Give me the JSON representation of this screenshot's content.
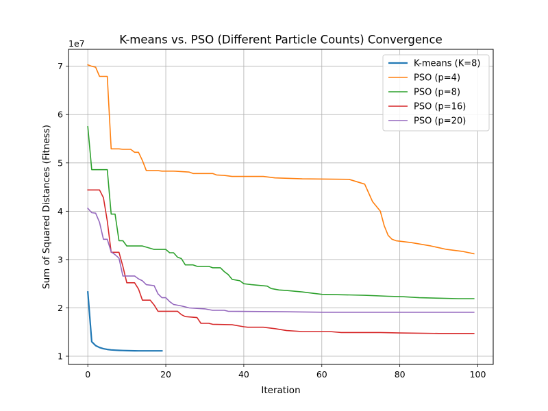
{
  "chart_data": {
    "type": "line",
    "title": "K-means vs. PSO (Different Particle Counts) Convergence",
    "xlabel": "Iteration",
    "ylabel": "Sum of Squared Distances (Fitness)",
    "y_exponent_label": "1e7",
    "xlim": [
      -4.95,
      103.95
    ],
    "ylim": [
      8300000,
      73500000
    ],
    "x_ticks": [
      0,
      20,
      40,
      60,
      80,
      100
    ],
    "y_ticks": [
      10000000,
      20000000,
      30000000,
      40000000,
      50000000,
      60000000,
      70000000
    ],
    "y_tick_labels": [
      "1",
      "2",
      "3",
      "4",
      "5",
      "6",
      "7"
    ],
    "grid": true,
    "legend_position": "top-right",
    "series": [
      {
        "name": "K-means (K=8)",
        "color": "#1f77b4",
        "width": 2.2,
        "points": [
          [
            0,
            23300000
          ],
          [
            1,
            13000000
          ],
          [
            2,
            12200000
          ],
          [
            3,
            11800000
          ],
          [
            4,
            11550000
          ],
          [
            5,
            11400000
          ],
          [
            6,
            11300000
          ],
          [
            7,
            11250000
          ],
          [
            8,
            11200000
          ],
          [
            9,
            11180000
          ],
          [
            10,
            11150000
          ],
          [
            11,
            11130000
          ],
          [
            12,
            11120000
          ],
          [
            13,
            11110000
          ],
          [
            14,
            11100000
          ],
          [
            15,
            11100000
          ],
          [
            16,
            11100000
          ],
          [
            17,
            11100000
          ],
          [
            18,
            11100000
          ],
          [
            19,
            11100000
          ]
        ]
      },
      {
        "name": "PSO (p=4)",
        "color": "#ff7f0e",
        "width": 1.6,
        "points": [
          [
            0,
            70300000
          ],
          [
            1,
            70000000
          ],
          [
            2,
            69800000
          ],
          [
            3,
            67900000
          ],
          [
            4,
            67900000
          ],
          [
            5,
            67900000
          ],
          [
            6,
            52900000
          ],
          [
            8,
            52900000
          ],
          [
            9,
            52800000
          ],
          [
            11,
            52800000
          ],
          [
            12,
            52200000
          ],
          [
            13,
            52200000
          ],
          [
            14,
            50500000
          ],
          [
            15,
            48400000
          ],
          [
            18,
            48400000
          ],
          [
            19,
            48300000
          ],
          [
            22,
            48300000
          ],
          [
            26,
            48100000
          ],
          [
            27,
            47800000
          ],
          [
            32,
            47800000
          ],
          [
            33,
            47500000
          ],
          [
            35,
            47400000
          ],
          [
            37,
            47200000
          ],
          [
            45,
            47200000
          ],
          [
            48,
            46900000
          ],
          [
            55,
            46700000
          ],
          [
            67,
            46600000
          ],
          [
            71,
            45600000
          ],
          [
            72,
            43800000
          ],
          [
            73,
            42000000
          ],
          [
            75,
            40000000
          ],
          [
            76,
            37000000
          ],
          [
            77,
            35000000
          ],
          [
            78,
            34200000
          ],
          [
            79,
            33900000
          ],
          [
            83,
            33500000
          ],
          [
            88,
            32800000
          ],
          [
            92,
            32100000
          ],
          [
            96,
            31700000
          ],
          [
            99,
            31200000
          ]
        ]
      },
      {
        "name": "PSO (p=8)",
        "color": "#2ca02c",
        "width": 1.6,
        "points": [
          [
            0,
            57500000
          ],
          [
            1,
            48600000
          ],
          [
            5,
            48600000
          ],
          [
            6,
            39400000
          ],
          [
            7,
            39400000
          ],
          [
            8,
            33900000
          ],
          [
            9,
            33900000
          ],
          [
            10,
            32800000
          ],
          [
            14,
            32800000
          ],
          [
            17,
            32100000
          ],
          [
            20,
            32100000
          ],
          [
            21,
            31400000
          ],
          [
            22,
            31400000
          ],
          [
            23,
            30500000
          ],
          [
            24,
            30200000
          ],
          [
            25,
            28900000
          ],
          [
            27,
            28900000
          ],
          [
            28,
            28600000
          ],
          [
            31,
            28600000
          ],
          [
            32,
            28300000
          ],
          [
            34,
            28300000
          ],
          [
            35,
            27500000
          ],
          [
            36,
            26900000
          ],
          [
            37,
            25900000
          ],
          [
            39,
            25600000
          ],
          [
            40,
            25000000
          ],
          [
            42,
            24800000
          ],
          [
            46,
            24500000
          ],
          [
            47,
            24000000
          ],
          [
            49,
            23700000
          ],
          [
            51,
            23600000
          ],
          [
            55,
            23300000
          ],
          [
            58,
            23000000
          ],
          [
            60,
            22800000
          ],
          [
            66,
            22700000
          ],
          [
            71,
            22600000
          ],
          [
            77,
            22400000
          ],
          [
            81,
            22300000
          ],
          [
            85,
            22100000
          ],
          [
            90,
            22000000
          ],
          [
            95,
            21900000
          ],
          [
            99,
            21900000
          ]
        ]
      },
      {
        "name": "PSO (p=16)",
        "color": "#d62728",
        "width": 1.6,
        "points": [
          [
            0,
            44400000
          ],
          [
            3,
            44400000
          ],
          [
            4,
            42800000
          ],
          [
            5,
            38000000
          ],
          [
            6,
            31500000
          ],
          [
            8,
            31500000
          ],
          [
            9,
            28600000
          ],
          [
            10,
            25200000
          ],
          [
            12,
            25200000
          ],
          [
            13,
            23900000
          ],
          [
            14,
            21600000
          ],
          [
            16,
            21600000
          ],
          [
            17,
            20600000
          ],
          [
            18,
            19300000
          ],
          [
            23,
            19300000
          ],
          [
            24,
            18600000
          ],
          [
            25,
            18200000
          ],
          [
            28,
            18000000
          ],
          [
            29,
            16800000
          ],
          [
            31,
            16800000
          ],
          [
            32,
            16600000
          ],
          [
            37,
            16500000
          ],
          [
            40,
            16100000
          ],
          [
            41,
            16000000
          ],
          [
            45,
            16000000
          ],
          [
            48,
            15700000
          ],
          [
            51,
            15300000
          ],
          [
            55,
            15100000
          ],
          [
            62,
            15100000
          ],
          [
            65,
            14900000
          ],
          [
            75,
            14900000
          ],
          [
            80,
            14800000
          ],
          [
            90,
            14700000
          ],
          [
            99,
            14700000
          ]
        ]
      },
      {
        "name": "PSO (p=20)",
        "color": "#9467bd",
        "width": 1.6,
        "points": [
          [
            0,
            40600000
          ],
          [
            1,
            39700000
          ],
          [
            2,
            39600000
          ],
          [
            3,
            37700000
          ],
          [
            4,
            34200000
          ],
          [
            5,
            34200000
          ],
          [
            6,
            31600000
          ],
          [
            7,
            31000000
          ],
          [
            8,
            30300000
          ],
          [
            9,
            26600000
          ],
          [
            12,
            26600000
          ],
          [
            13,
            26000000
          ],
          [
            14,
            25600000
          ],
          [
            15,
            24800000
          ],
          [
            17,
            24600000
          ],
          [
            18,
            22900000
          ],
          [
            19,
            22100000
          ],
          [
            20,
            22100000
          ],
          [
            21,
            21300000
          ],
          [
            22,
            20700000
          ],
          [
            24,
            20400000
          ],
          [
            25,
            20200000
          ],
          [
            26,
            20000000
          ],
          [
            30,
            19800000
          ],
          [
            32,
            19500000
          ],
          [
            35,
            19500000
          ],
          [
            36,
            19300000
          ],
          [
            50,
            19200000
          ],
          [
            60,
            19100000
          ],
          [
            99,
            19100000
          ]
        ]
      }
    ]
  }
}
